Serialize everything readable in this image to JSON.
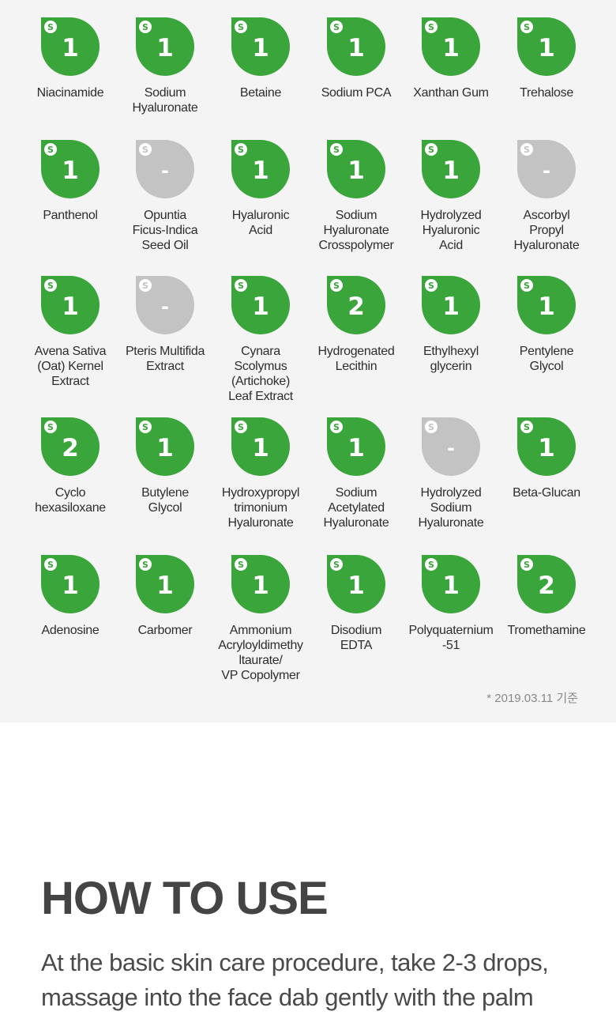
{
  "ingredients": [
    {
      "name": "Niacinamide",
      "grade": "1",
      "status": "green"
    },
    {
      "name": "Sodium\nHyaluronate",
      "grade": "1",
      "status": "green"
    },
    {
      "name": "Betaine",
      "grade": "1",
      "status": "green"
    },
    {
      "name": "Sodium PCA",
      "grade": "1",
      "status": "green"
    },
    {
      "name": "Xanthan Gum",
      "grade": "1",
      "status": "green"
    },
    {
      "name": "Trehalose",
      "grade": "1",
      "status": "green"
    },
    {
      "name": "Panthenol",
      "grade": "1",
      "status": "green"
    },
    {
      "name": "Opuntia\nFicus-Indica\nSeed Oil",
      "grade": "-",
      "status": "gray"
    },
    {
      "name": "Hyaluronic\nAcid",
      "grade": "1",
      "status": "green"
    },
    {
      "name": "Sodium\nHyaluronate\nCrosspolymer",
      "grade": "1",
      "status": "green"
    },
    {
      "name": "Hydrolyzed\nHyaluronic\nAcid",
      "grade": "1",
      "status": "green"
    },
    {
      "name": "Ascorbyl\nPropyl\nHyaluronate",
      "grade": "-",
      "status": "gray"
    },
    {
      "name": "Avena Sativa\n(Oat) Kernel\nExtract",
      "grade": "1",
      "status": "green"
    },
    {
      "name": "Pteris Multifida\nExtract",
      "grade": "-",
      "status": "gray"
    },
    {
      "name": "Cynara\nScolymus\n(Artichoke)\nLeaf Extract",
      "grade": "1",
      "status": "green"
    },
    {
      "name": "Hydrogenated\nLecithin",
      "grade": "2",
      "status": "green"
    },
    {
      "name": "Ethylhexyl\nglycerin",
      "grade": "1",
      "status": "green"
    },
    {
      "name": "Pentylene\nGlycol",
      "grade": "1",
      "status": "green"
    },
    {
      "name": "Cyclo\nhexasiloxane",
      "grade": "2",
      "status": "green"
    },
    {
      "name": "Butylene\nGlycol",
      "grade": "1",
      "status": "green"
    },
    {
      "name": "Hydroxypropyl\ntrimonium\nHyaluronate",
      "grade": "1",
      "status": "green"
    },
    {
      "name": "Sodium\nAcetylated\nHyaluronate",
      "grade": "1",
      "status": "green"
    },
    {
      "name": "Hydrolyzed\nSodium\nHyaluronate",
      "grade": "-",
      "status": "gray"
    },
    {
      "name": "Beta-Glucan",
      "grade": "1",
      "status": "green"
    },
    {
      "name": "Adenosine",
      "grade": "1",
      "status": "green"
    },
    {
      "name": "Carbomer",
      "grade": "1",
      "status": "green"
    },
    {
      "name": "Ammonium\nAcryloyldimethy\nltaurate/\nVP Copolymer",
      "grade": "1",
      "status": "green"
    },
    {
      "name": "Disodium\nEDTA",
      "grade": "1",
      "status": "green"
    },
    {
      "name": "Polyquaternium\n-51",
      "grade": "1",
      "status": "green"
    },
    {
      "name": "Tromethamine",
      "grade": "2",
      "status": "green"
    }
  ],
  "footnote": "* 2019.03.11 기준",
  "how_to_use": {
    "title": "HOW TO USE",
    "text": "At the basic skin care procedure, take 2-3 drops, massage into the face dab gently with the palm"
  },
  "colors": {
    "safe_green": "#3aa53a",
    "unknown_gray": "#c3c3c3",
    "panel_bg": "#f4f4f4"
  },
  "icons": {
    "badge_logo": "ewg-logo-icon"
  }
}
